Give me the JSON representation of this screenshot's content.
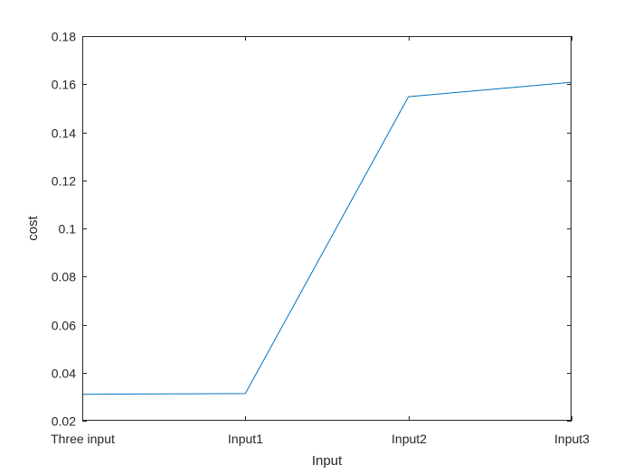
{
  "chart_data": {
    "type": "line",
    "categories": [
      "Three input",
      "Input1",
      "Input2",
      "Input3"
    ],
    "series": [
      {
        "values": [
          0.031,
          0.0313,
          0.1548,
          0.1608
        ],
        "color": "#0072BD"
      }
    ],
    "xlabel": "Input",
    "ylabel": "cost",
    "ylim": [
      0.02,
      0.18
    ],
    "yticks": [
      "0.02",
      "0.04",
      "0.06",
      "0.08",
      "0.1",
      "0.12",
      "0.14",
      "0.16",
      "0.18"
    ],
    "grid": false,
    "box": true,
    "colors": {
      "axis": "#262626",
      "background": "#ffffff"
    }
  }
}
